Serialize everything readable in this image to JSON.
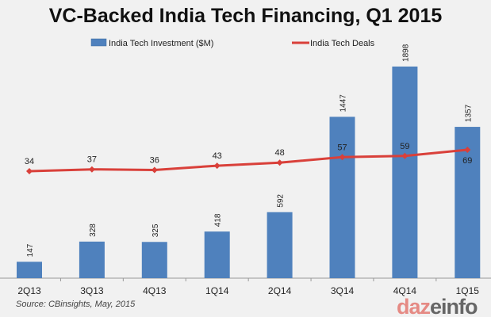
{
  "chart_data": {
    "type": "bar+line",
    "title": "VC-Backed India Tech Financing, Q1 2015",
    "categories": [
      "2Q13",
      "3Q13",
      "4Q13",
      "1Q14",
      "2Q14",
      "3Q14",
      "4Q14",
      "1Q15"
    ],
    "series": [
      {
        "name": "India Tech Investment ($M)",
        "type": "bar",
        "color": "#4f81bd",
        "values": [
          147,
          328,
          325,
          418,
          592,
          1447,
          1898,
          1357
        ]
      },
      {
        "name": "India Tech Deals",
        "type": "line",
        "color": "#d9403a",
        "values": [
          34,
          37,
          36,
          43,
          48,
          57,
          59,
          69
        ]
      }
    ],
    "legend": "top",
    "grid": false
  },
  "source": "Source:  CBinsights, May, 2015",
  "logo": {
    "text": "dazeinfo",
    "brand": "dazeinfo"
  }
}
